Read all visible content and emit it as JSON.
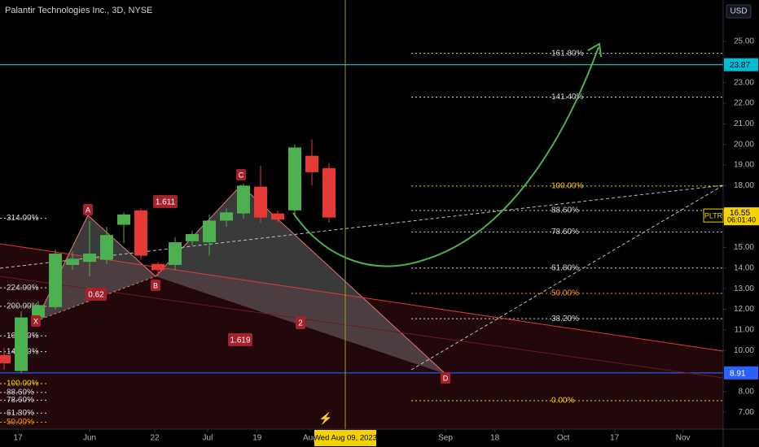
{
  "header": {
    "title": "Palantir Technologies Inc., 3D, NYSE",
    "currency": "USD"
  },
  "chart_data": {
    "type": "candlestick",
    "categories": [
      null,
      null,
      null,
      null,
      null,
      null,
      null,
      null,
      null,
      null,
      null,
      null,
      null,
      null,
      null,
      null,
      null,
      null,
      null,
      null
    ],
    "open": [
      9.77,
      9.0,
      11.6,
      12.1,
      14.15,
      14.3,
      14.4,
      16.1,
      16.8,
      14.2,
      14.15,
      15.3,
      15.25,
      16.3,
      16.65,
      17.95,
      16.65,
      16.8,
      19.45,
      18.85
    ],
    "high": [
      10.13,
      11.9,
      12.4,
      14.9,
      14.8,
      16.28,
      16.0,
      16.7,
      16.9,
      14.3,
      15.5,
      15.8,
      16.6,
      16.9,
      18.1,
      18.96,
      16.8,
      20.0,
      20.25,
      19.1
    ],
    "low": [
      9.06,
      8.9,
      11.4,
      12.0,
      13.9,
      13.6,
      14.2,
      15.2,
      14.4,
      13.6,
      13.9,
      15.1,
      14.6,
      16.0,
      16.4,
      16.2,
      16.2,
      16.5,
      18.0,
      16.2
    ],
    "close": [
      9.38,
      11.6,
      12.2,
      14.7,
      14.45,
      14.7,
      15.6,
      16.6,
      14.6,
      13.9,
      15.25,
      15.65,
      16.3,
      16.7,
      18.0,
      16.45,
      16.35,
      19.85,
      18.65,
      16.45
    ],
    "up_color": "#4caf50",
    "down_color": "#e53935",
    "xlim": [
      -0.24,
      42.05
    ],
    "xticks": [
      {
        "value": 0.81,
        "label": "17"
      },
      {
        "value": 5.0,
        "label": "Jun"
      },
      {
        "value": 8.81,
        "label": "22"
      },
      {
        "value": 11.9,
        "label": "Jul"
      },
      {
        "value": 14.8,
        "label": "19"
      },
      {
        "value": 17.9,
        "label": "Aug"
      },
      {
        "value": 25.81,
        "label": "Sep"
      },
      {
        "value": 28.7,
        "label": "18"
      },
      {
        "value": 32.7,
        "label": "Oct"
      },
      {
        "value": 35.7,
        "label": "17"
      },
      {
        "value": 39.7,
        "label": "Nov"
      }
    ],
    "ylim": [
      6.18,
      27.01
    ],
    "yticks": [
      {
        "value": 7,
        "label": "7.00"
      },
      {
        "value": 8,
        "label": "8.00"
      },
      {
        "value": 10,
        "label": "10.00"
      },
      {
        "value": 11,
        "label": "11.00"
      },
      {
        "value": 12,
        "label": "12.00"
      },
      {
        "value": 13,
        "label": "13.00"
      },
      {
        "value": 14,
        "label": "14.00"
      },
      {
        "value": 15,
        "label": "15.00"
      },
      {
        "value": 18,
        "label": "18.00"
      },
      {
        "value": 19,
        "label": "19.00"
      },
      {
        "value": 20,
        "label": "20.00"
      },
      {
        "value": 21,
        "label": "21.00"
      },
      {
        "value": 22,
        "label": "22.00"
      },
      {
        "value": 23,
        "label": "23.00"
      },
      {
        "value": 25,
        "label": "25.00"
      }
    ],
    "price_lines": [
      {
        "value": 23.87,
        "color": "#00bcd4"
      },
      {
        "value": 8.91,
        "color": "#2962ff"
      }
    ],
    "last_price": {
      "symbol": "PLTR",
      "value": 16.55,
      "countdown": "06:01:40",
      "color": "#f5d100"
    },
    "crosshair": {
      "label": "Wed Aug 09, 2023"
    },
    "fib_right": {
      "zero_price": 7.56,
      "full_price": 17.98,
      "levels": [
        {
          "value": 161.8,
          "label": "161.80%",
          "color": "#d1d4dc"
        },
        {
          "value": 141.4,
          "label": "141.40%",
          "color": "#d1d4dc"
        },
        {
          "value": 100,
          "label": "100.00%",
          "color": "#f5d100"
        },
        {
          "value": 88.6,
          "label": "88.60%",
          "color": "#d1d4dc"
        },
        {
          "value": 78.6,
          "label": "78.60%",
          "color": "#d1d4dc"
        },
        {
          "value": 61.8,
          "label": "61.80%",
          "color": "#d1d4dc"
        },
        {
          "value": 50,
          "label": "50.00%",
          "color": "#ff9800"
        },
        {
          "value": 38.2,
          "label": "38.20%",
          "color": "#d1d4dc"
        },
        {
          "value": 0,
          "label": "0.00%",
          "color": "#f5d100"
        }
      ]
    },
    "fib_left": {
      "zero_price": 4.64,
      "full_price": 8.39,
      "levels": [
        {
          "value": 314,
          "label": "314.00%",
          "color": "#d1d4dc"
        },
        {
          "value": 224,
          "label": "224.00%",
          "color": "#d1d4dc"
        },
        {
          "value": 200,
          "label": "200.00%",
          "color": "#d1d4dc"
        },
        {
          "value": 161.8,
          "label": "161.80%",
          "color": "#d1d4dc"
        },
        {
          "value": 141.4,
          "label": "141.40%",
          "color": "#d1d4dc"
        },
        {
          "value": 100,
          "label": "100.00%",
          "color": "#f5d100"
        },
        {
          "value": 88.6,
          "label": "88.60%",
          "color": "#d1d4dc"
        },
        {
          "value": 78.6,
          "label": "78.60%",
          "color": "#d1d4dc"
        },
        {
          "value": 61.8,
          "label": "61.80%",
          "color": "#d1d4dc"
        },
        {
          "value": 50,
          "label": "50.00%",
          "color": "#ff9800"
        }
      ]
    },
    "pattern": {
      "points": [
        "X",
        "A",
        "B",
        "C",
        "D"
      ],
      "ratios": [
        "0.62",
        "1.611",
        "1.619",
        "2"
      ]
    }
  }
}
